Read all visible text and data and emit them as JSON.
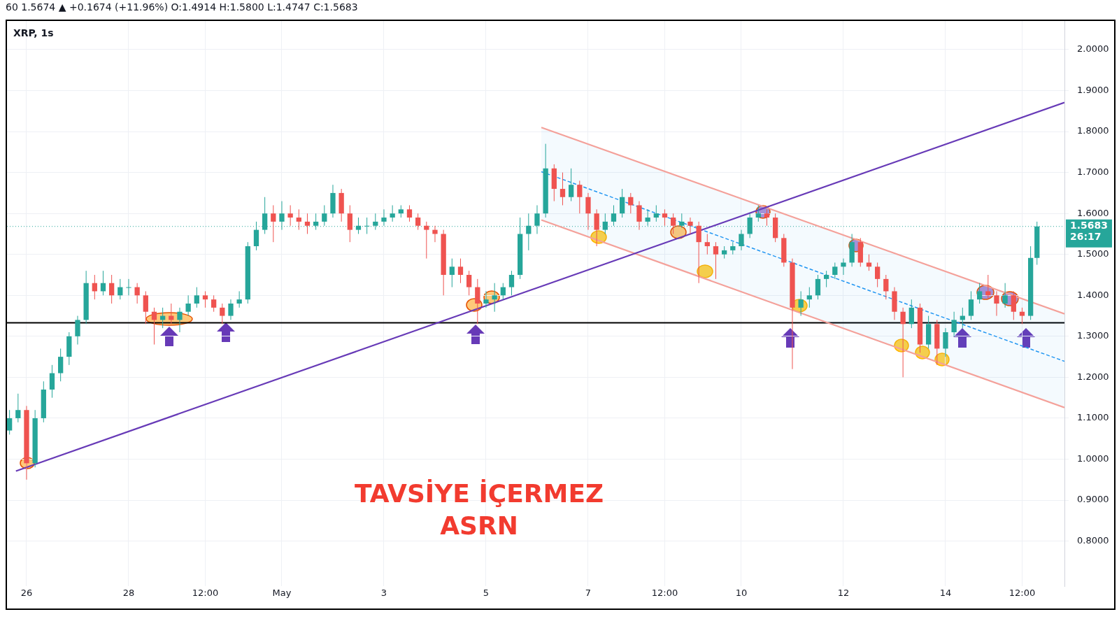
{
  "chart_data": {
    "type": "candlestick",
    "title": "XRP, 1s",
    "subtitle": "60 1.5674 ▲ +0.1674 (+11.96%) O:1.4914 H:1.5800 L:1.4747 C:1.5683",
    "annotations": [
      "TAVSİYE İÇERMEZ",
      "ASRN",
      "26:17"
    ],
    "x": [
      "--04-25T16:00",
      "--04-25T20:00",
      "--04-26T00:00",
      "--04-26T04:00",
      "--04-26T08:00",
      "--04-26T12:00",
      "--04-26T16:00",
      "--04-26T20:00",
      "--04-27T00:00",
      "--04-27T04:00",
      "--04-27T08:00",
      "--04-27T12:00",
      "--04-27T16:00",
      "--04-27T20:00",
      "--04-28T00:00",
      "--04-28T04:00",
      "--04-28T08:00",
      "--04-28T12:00",
      "--04-28T16:00",
      "--04-28T20:00",
      "--04-29T00:00",
      "--04-29T04:00",
      "--04-29T08:00",
      "--04-29T12:00",
      "--04-29T16:00",
      "--04-29T20:00",
      "--04-30T00:00",
      "--04-30T04:00",
      "--04-30T08:00",
      "--04-30T12:00",
      "--04-30T16:00",
      "--04-30T20:00",
      "--05-01T00:00",
      "--05-01T04:00",
      "--05-01T08:00",
      "--05-01T12:00",
      "--05-01T16:00",
      "--05-01T20:00",
      "--05-02T00:00",
      "--05-02T04:00",
      "--05-02T08:00",
      "--05-02T12:00",
      "--05-02T16:00",
      "--05-02T20:00",
      "--05-03T00:00",
      "--05-03T04:00",
      "--05-03T08:00",
      "--05-03T12:00",
      "--05-03T16:00",
      "--05-03T20:00",
      "--05-04T00:00",
      "--05-04T04:00",
      "--05-04T08:00",
      "--05-04T12:00",
      "--05-04T16:00",
      "--05-04T20:00",
      "--05-05T00:00",
      "--05-05T04:00",
      "--05-05T08:00",
      "--05-05T12:00",
      "--05-05T16:00",
      "--05-05T20:00",
      "--05-06T00:00",
      "--05-06T04:00",
      "--05-06T08:00",
      "--05-06T12:00",
      "--05-06T16:00",
      "--05-06T20:00",
      "--05-07T00:00",
      "--05-07T04:00",
      "--05-07T08:00",
      "--05-07T12:00",
      "--05-07T16:00",
      "--05-07T20:00",
      "--05-08T00:00",
      "--05-08T04:00",
      "--05-08T08:00",
      "--05-08T12:00",
      "--05-08T16:00",
      "--05-08T20:00",
      "--05-09T00:00",
      "--05-09T04:00",
      "--05-09T08:00",
      "--05-09T12:00",
      "--05-09T16:00",
      "--05-09T20:00",
      "--05-10T00:00",
      "--05-10T04:00",
      "--05-10T08:00",
      "--05-10T12:00",
      "--05-10T16:00",
      "--05-10T20:00",
      "--05-11T00:00",
      "--05-11T04:00",
      "--05-11T08:00",
      "--05-11T12:00",
      "--05-11T16:00",
      "--05-11T20:00",
      "--05-12T00:00",
      "--05-12T04:00",
      "--05-12T08:00",
      "--05-12T12:00",
      "--05-12T16:00",
      "--05-12T20:00",
      "--05-13T00:00",
      "--05-13T04:00",
      "--05-13T08:00",
      "--05-13T12:00",
      "--05-13T16:00",
      "--05-13T20:00",
      "--05-14T00:00",
      "--05-14T04:00",
      "--05-14T08:00",
      "--05-14T12:00",
      "--05-14T16:00",
      "--05-14T20:00",
      "--05-15T00:00",
      "--05-15T04:00",
      "--05-15T08:00",
      "--05-15T12:00",
      "--05-15T16:00",
      "--05-15T19:00"
    ],
    "ohlc": [
      [
        1.07,
        1.12,
        1.06,
        1.1
      ],
      [
        1.1,
        1.16,
        1.09,
        1.12
      ],
      [
        1.12,
        1.13,
        0.95,
        0.99
      ],
      [
        0.99,
        1.12,
        0.98,
        1.1
      ],
      [
        1.1,
        1.19,
        1.09,
        1.17
      ],
      [
        1.17,
        1.23,
        1.15,
        1.21
      ],
      [
        1.21,
        1.27,
        1.19,
        1.25
      ],
      [
        1.25,
        1.31,
        1.23,
        1.3
      ],
      [
        1.3,
        1.35,
        1.28,
        1.34
      ],
      [
        1.34,
        1.46,
        1.33,
        1.43
      ],
      [
        1.43,
        1.45,
        1.39,
        1.41
      ],
      [
        1.41,
        1.46,
        1.4,
        1.43
      ],
      [
        1.43,
        1.45,
        1.38,
        1.4
      ],
      [
        1.4,
        1.44,
        1.39,
        1.42
      ],
      [
        1.42,
        1.44,
        1.4,
        1.42
      ],
      [
        1.42,
        1.43,
        1.38,
        1.4
      ],
      [
        1.4,
        1.41,
        1.33,
        1.36
      ],
      [
        1.36,
        1.37,
        1.28,
        1.34
      ],
      [
        1.34,
        1.37,
        1.32,
        1.35
      ],
      [
        1.35,
        1.38,
        1.33,
        1.34
      ],
      [
        1.34,
        1.37,
        1.31,
        1.36
      ],
      [
        1.36,
        1.4,
        1.35,
        1.38
      ],
      [
        1.38,
        1.42,
        1.37,
        1.4
      ],
      [
        1.4,
        1.41,
        1.37,
        1.39
      ],
      [
        1.39,
        1.4,
        1.36,
        1.37
      ],
      [
        1.37,
        1.38,
        1.33,
        1.35
      ],
      [
        1.35,
        1.39,
        1.34,
        1.38
      ],
      [
        1.38,
        1.41,
        1.37,
        1.39
      ],
      [
        1.39,
        1.53,
        1.38,
        1.52
      ],
      [
        1.52,
        1.58,
        1.51,
        1.56
      ],
      [
        1.56,
        1.64,
        1.55,
        1.6
      ],
      [
        1.6,
        1.62,
        1.53,
        1.58
      ],
      [
        1.58,
        1.63,
        1.56,
        1.6
      ],
      [
        1.6,
        1.62,
        1.57,
        1.59
      ],
      [
        1.59,
        1.61,
        1.56,
        1.58
      ],
      [
        1.58,
        1.6,
        1.55,
        1.57
      ],
      [
        1.57,
        1.6,
        1.56,
        1.58
      ],
      [
        1.58,
        1.62,
        1.57,
        1.6
      ],
      [
        1.6,
        1.67,
        1.59,
        1.65
      ],
      [
        1.65,
        1.66,
        1.58,
        1.6
      ],
      [
        1.6,
        1.62,
        1.53,
        1.56
      ],
      [
        1.56,
        1.59,
        1.55,
        1.57
      ],
      [
        1.57,
        1.59,
        1.55,
        1.57
      ],
      [
        1.57,
        1.6,
        1.56,
        1.58
      ],
      [
        1.58,
        1.61,
        1.57,
        1.59
      ],
      [
        1.59,
        1.62,
        1.58,
        1.6
      ],
      [
        1.6,
        1.62,
        1.59,
        1.61
      ],
      [
        1.61,
        1.62,
        1.58,
        1.59
      ],
      [
        1.59,
        1.6,
        1.56,
        1.57
      ],
      [
        1.57,
        1.58,
        1.49,
        1.56
      ],
      [
        1.56,
        1.57,
        1.53,
        1.55
      ],
      [
        1.55,
        1.56,
        1.4,
        1.45
      ],
      [
        1.45,
        1.49,
        1.42,
        1.47
      ],
      [
        1.47,
        1.49,
        1.43,
        1.45
      ],
      [
        1.45,
        1.46,
        1.4,
        1.42
      ],
      [
        1.42,
        1.44,
        1.33,
        1.38
      ],
      [
        1.38,
        1.41,
        1.37,
        1.39
      ],
      [
        1.39,
        1.43,
        1.36,
        1.4
      ],
      [
        1.4,
        1.43,
        1.39,
        1.42
      ],
      [
        1.42,
        1.46,
        1.4,
        1.45
      ],
      [
        1.45,
        1.59,
        1.44,
        1.55
      ],
      [
        1.55,
        1.6,
        1.51,
        1.57
      ],
      [
        1.57,
        1.62,
        1.55,
        1.6
      ],
      [
        1.6,
        1.77,
        1.59,
        1.71
      ],
      [
        1.71,
        1.72,
        1.63,
        1.66
      ],
      [
        1.66,
        1.7,
        1.62,
        1.64
      ],
      [
        1.64,
        1.71,
        1.63,
        1.67
      ],
      [
        1.67,
        1.68,
        1.6,
        1.64
      ],
      [
        1.64,
        1.65,
        1.56,
        1.6
      ],
      [
        1.6,
        1.61,
        1.52,
        1.56
      ],
      [
        1.56,
        1.6,
        1.55,
        1.58
      ],
      [
        1.58,
        1.62,
        1.57,
        1.6
      ],
      [
        1.6,
        1.66,
        1.59,
        1.64
      ],
      [
        1.64,
        1.65,
        1.6,
        1.62
      ],
      [
        1.62,
        1.63,
        1.56,
        1.58
      ],
      [
        1.58,
        1.61,
        1.57,
        1.59
      ],
      [
        1.59,
        1.62,
        1.58,
        1.6
      ],
      [
        1.6,
        1.61,
        1.57,
        1.59
      ],
      [
        1.59,
        1.6,
        1.55,
        1.57
      ],
      [
        1.57,
        1.6,
        1.565,
        1.58
      ],
      [
        1.58,
        1.59,
        1.55,
        1.57
      ],
      [
        1.57,
        1.58,
        1.43,
        1.53
      ],
      [
        1.53,
        1.55,
        1.5,
        1.52
      ],
      [
        1.52,
        1.53,
        1.44,
        1.5
      ],
      [
        1.5,
        1.52,
        1.49,
        1.51
      ],
      [
        1.51,
        1.53,
        1.5,
        1.52
      ],
      [
        1.52,
        1.56,
        1.51,
        1.55
      ],
      [
        1.55,
        1.6,
        1.54,
        1.59
      ],
      [
        1.59,
        1.62,
        1.58,
        1.6
      ],
      [
        1.6,
        1.61,
        1.57,
        1.59
      ],
      [
        1.59,
        1.6,
        1.53,
        1.54
      ],
      [
        1.54,
        1.55,
        1.47,
        1.48
      ],
      [
        1.48,
        1.49,
        1.22,
        1.37
      ],
      [
        1.37,
        1.41,
        1.35,
        1.39
      ],
      [
        1.39,
        1.42,
        1.37,
        1.4
      ],
      [
        1.4,
        1.45,
        1.39,
        1.44
      ],
      [
        1.44,
        1.46,
        1.42,
        1.45
      ],
      [
        1.45,
        1.48,
        1.44,
        1.47
      ],
      [
        1.47,
        1.49,
        1.45,
        1.48
      ],
      [
        1.48,
        1.55,
        1.47,
        1.53
      ],
      [
        1.53,
        1.54,
        1.47,
        1.48
      ],
      [
        1.48,
        1.5,
        1.46,
        1.47
      ],
      [
        1.47,
        1.48,
        1.42,
        1.44
      ],
      [
        1.44,
        1.45,
        1.39,
        1.41
      ],
      [
        1.41,
        1.42,
        1.34,
        1.36
      ],
      [
        1.36,
        1.37,
        1.2,
        1.33
      ],
      [
        1.33,
        1.39,
        1.32,
        1.37
      ],
      [
        1.37,
        1.38,
        1.26,
        1.28
      ],
      [
        1.28,
        1.35,
        1.27,
        1.33
      ],
      [
        1.33,
        1.34,
        1.23,
        1.27
      ],
      [
        1.27,
        1.32,
        1.25,
        1.31
      ],
      [
        1.31,
        1.36,
        1.3,
        1.34
      ],
      [
        1.34,
        1.37,
        1.32,
        1.35
      ],
      [
        1.35,
        1.41,
        1.34,
        1.39
      ],
      [
        1.39,
        1.43,
        1.38,
        1.41
      ],
      [
        1.41,
        1.45,
        1.39,
        1.4
      ],
      [
        1.4,
        1.41,
        1.35,
        1.38
      ],
      [
        1.38,
        1.43,
        1.37,
        1.4
      ],
      [
        1.4,
        1.41,
        1.34,
        1.36
      ],
      [
        1.36,
        1.37,
        1.33,
        1.35
      ],
      [
        1.35,
        1.52,
        1.34,
        1.4914
      ],
      [
        1.4914,
        1.58,
        1.4747,
        1.5683
      ]
    ],
    "series": [
      {
        "type": "line",
        "color": "#673ab7",
        "line_style": "solid",
        "x": [
          "--04-25T19:00",
          "--05-16T07:54"
        ],
        "values": [
          0.971,
          1.871
        ]
      },
      {
        "type": "line",
        "color": "#f4a19a",
        "line_style": "solid",
        "x": [
          "--05-06T02:00",
          "--05-16T07:54"
        ],
        "values": [
          1.81,
          1.355
        ]
      },
      {
        "type": "line",
        "color": "#f4a19a",
        "line_style": "solid",
        "x": [
          "--05-06T02:00",
          "--05-16T07:54"
        ],
        "values": [
          1.584,
          1.126
        ]
      },
      {
        "type": "line",
        "color": "#2196f3",
        "line_style": "dashed",
        "x": [
          "--05-06T02:00",
          "--05-16T07:54"
        ],
        "values": [
          1.702,
          1.239
        ],
        "lower": [
          1.584,
          1.126
        ],
        "upper": [
          1.81,
          1.355
        ]
      }
    ],
    "ref_lines": [
      {
        "axis": "y",
        "value": 1.333,
        "color": "#000000",
        "line_style": "solid"
      },
      {
        "axis": "y",
        "value": 1.5683,
        "label": "1.5683",
        "color": "#26a69a",
        "line_style": "dotted"
      }
    ],
    "xlim": [
      "--04-25T14:48",
      "--05-16T07:54"
    ],
    "xticks": [
      {
        "value": "--04-26",
        "label": "26"
      },
      {
        "value": "--04-28",
        "label": "28"
      },
      {
        "value": "--04-29T12:00",
        "label": "12:00"
      },
      {
        "value": "--05-01",
        "label": "May"
      },
      {
        "value": "--05-03",
        "label": "3"
      },
      {
        "value": "--05-05",
        "label": "5"
      },
      {
        "value": "--05-07",
        "label": "7"
      },
      {
        "value": "--05-08T12:00",
        "label": "12:00"
      },
      {
        "value": "--05-10",
        "label": "10"
      },
      {
        "value": "--05-12",
        "label": "12"
      },
      {
        "value": "--05-14",
        "label": "14"
      },
      {
        "value": "--05-15T12:00",
        "label": "12:00"
      }
    ],
    "ylim": [
      0.69,
      2.07
    ],
    "yticks": [
      {
        "value": 0.8,
        "label": "0.8000"
      },
      {
        "value": 0.9,
        "label": "0.9000"
      },
      {
        "value": 1.0,
        "label": "1.0000"
      },
      {
        "value": 1.1,
        "label": "1.1000"
      },
      {
        "value": 1.2,
        "label": "1.2000"
      },
      {
        "value": 1.3,
        "label": "1.3000"
      },
      {
        "value": 1.4,
        "label": "1.4000"
      },
      {
        "value": 1.5,
        "label": "1.5000"
      },
      {
        "value": 1.6,
        "label": "1.6000"
      },
      {
        "value": 1.7,
        "label": "1.7000"
      },
      {
        "value": 1.8,
        "label": "1.8000"
      },
      {
        "value": 1.9,
        "label": "1.9000"
      },
      {
        "value": 2.0,
        "label": "2.0000"
      }
    ],
    "grid": true,
    "legend": false
  }
}
